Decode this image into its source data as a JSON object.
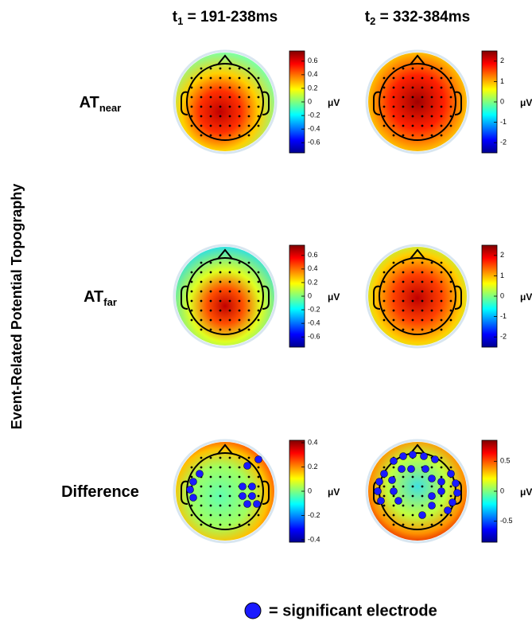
{
  "y_axis_title": "Event-Related Potential Topography",
  "columns": [
    {
      "label": "t",
      "subscript": "1",
      "rest": " = 191-238ms"
    },
    {
      "label": "t",
      "subscript": "2",
      "rest": " = 332-384ms"
    }
  ],
  "rows": [
    {
      "label": "AT",
      "subscript": "near"
    },
    {
      "label": "AT",
      "subscript": "far"
    },
    {
      "label": "Difference"
    }
  ],
  "colorbars": [
    [
      {
        "unit": "μV",
        "range": [
          -0.75,
          0.75
        ],
        "ticks": [
          0.6,
          0.4,
          0.2,
          0,
          -0.2,
          -0.4,
          -0.6
        ]
      },
      {
        "unit": "μV",
        "range": [
          -2.5,
          2.5
        ],
        "ticks": [
          2,
          1,
          0,
          -1,
          -2
        ]
      }
    ],
    [
      {
        "unit": "μV",
        "range": [
          -0.75,
          0.75
        ],
        "ticks": [
          0.6,
          0.4,
          0.2,
          0,
          -0.2,
          -0.4,
          -0.6
        ]
      },
      {
        "unit": "μV",
        "range": [
          -2.5,
          2.5
        ],
        "ticks": [
          2,
          1,
          0,
          -1,
          -2
        ]
      }
    ],
    [
      {
        "unit": "μV",
        "range": [
          -0.42,
          0.42
        ],
        "ticks": [
          0.4,
          0.2,
          0,
          -0.2,
          -0.4
        ]
      },
      {
        "unit": "μV",
        "range": [
          -0.85,
          0.85
        ],
        "ticks": [
          0.5,
          0,
          -0.5
        ]
      }
    ]
  ],
  "legend": "= significant electrode"
}
